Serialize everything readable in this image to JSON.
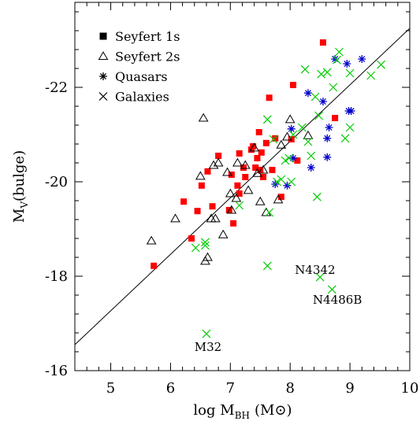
{
  "chart_data": {
    "type": "scatter",
    "title": "",
    "xlabel": {
      "main": "log M",
      "sub": "BH",
      "unit": "(M⊙)"
    },
    "ylabel": {
      "main": "M",
      "sub": "V",
      "rest": "(bulge)"
    },
    "xlim": [
      4.4,
      10.0
    ],
    "ylim": [
      -16.0,
      -23.8
    ],
    "y_inverted": true,
    "grid": false,
    "legend_position": "top-left",
    "x_ticks": [
      "5",
      "6",
      "7",
      "8",
      "9",
      "10"
    ],
    "y_ticks": [
      "-22",
      "-20",
      "-18",
      "-16"
    ],
    "fit_line": {
      "x": [
        4.4,
        10.0
      ],
      "y": [
        -16.55,
        -23.25
      ]
    },
    "series": [
      {
        "name": "Seyfert 1s",
        "marker": "filled-square",
        "color": "#ff0000",
        "x": [
          5.72,
          6.22,
          6.35,
          6.45,
          6.52,
          6.62,
          6.7,
          6.8,
          6.98,
          7.02,
          7.05,
          7.12,
          7.15,
          7.15,
          7.22,
          7.25,
          7.35,
          7.38,
          7.42,
          7.45,
          7.48,
          7.5,
          7.52,
          7.55,
          7.6,
          7.65,
          7.7,
          7.75,
          7.85,
          8.02,
          8.05,
          8.12,
          8.55,
          8.75
        ],
        "y": [
          -18.22,
          -19.58,
          -18.8,
          -19.38,
          -19.92,
          -20.22,
          -19.48,
          -20.55,
          -19.4,
          -20.15,
          -19.12,
          -19.92,
          -20.6,
          -19.75,
          -20.3,
          -20.1,
          -20.68,
          -20.75,
          -20.3,
          -20.5,
          -21.05,
          -20.25,
          -20.62,
          -20.1,
          -20.82,
          -21.78,
          -20.25,
          -20.92,
          -19.68,
          -20.9,
          -22.05,
          -20.45,
          -22.95,
          -21.35
        ]
      },
      {
        "name": "Seyfert 2s",
        "marker": "open-triangle",
        "color": "#000000",
        "x": [
          5.68,
          6.08,
          6.5,
          6.55,
          6.58,
          6.62,
          6.68,
          6.72,
          6.75,
          6.8,
          6.88,
          6.95,
          7.0,
          7.02,
          7.1,
          7.12,
          7.25,
          7.3,
          7.4,
          7.45,
          7.5,
          7.55,
          7.6,
          7.8,
          7.85,
          7.95,
          8.0,
          8.3
        ],
        "y": [
          -18.75,
          -19.22,
          -20.12,
          -21.35,
          -18.32,
          -18.4,
          -19.22,
          -20.35,
          -19.22,
          -20.4,
          -18.88,
          -20.2,
          -19.75,
          -19.4,
          -19.65,
          -20.4,
          -20.35,
          -19.82,
          -20.72,
          -20.18,
          -19.58,
          -20.25,
          -19.35,
          -19.62,
          -20.78,
          -20.95,
          -21.32,
          -20.98
        ]
      },
      {
        "name": "Quasars",
        "marker": "asterisk",
        "color": "#0000cc",
        "x": [
          7.75,
          7.95,
          8.02,
          8.05,
          8.3,
          8.35,
          8.55,
          8.62,
          8.62,
          8.65,
          8.75,
          8.95,
          8.98,
          9.02,
          9.2
        ],
        "y": [
          -19.95,
          -19.92,
          -21.12,
          -20.5,
          -21.88,
          -20.3,
          -21.7,
          -20.52,
          -20.92,
          -21.15,
          -22.6,
          -22.5,
          -21.5,
          -21.5,
          -22.6
        ]
      },
      {
        "name": "Galaxies",
        "marker": "cross",
        "color": "#00cc00",
        "x": [
          6.42,
          6.58,
          6.58,
          7.15,
          7.65,
          7.62,
          7.72,
          7.78,
          7.85,
          7.92,
          7.98,
          8.02,
          8.05,
          8.2,
          8.25,
          8.3,
          8.35,
          8.42,
          8.45,
          8.48,
          8.52,
          8.62,
          8.72,
          8.78,
          8.82,
          8.92,
          9.0,
          9.0,
          9.35,
          9.52,
          8.7,
          8.5,
          7.62,
          6.6
        ],
        "y": [
          -18.6,
          -18.65,
          -18.72,
          -19.5,
          -19.35,
          -21.32,
          -20.9,
          -20.0,
          -20.05,
          -20.45,
          -20.5,
          -20.0,
          -21.0,
          -21.15,
          -22.38,
          -20.85,
          -20.55,
          -21.8,
          -19.68,
          -21.4,
          -22.28,
          -22.32,
          -22.0,
          -22.58,
          -22.75,
          -20.92,
          -21.15,
          -22.3,
          -22.25,
          -22.48,
          -17.72,
          -17.98,
          -18.22,
          -16.78
        ]
      }
    ],
    "annotations": [
      {
        "text": "N4342",
        "x": 8.08,
        "y": -18.05
      },
      {
        "text": "N4486B",
        "x": 8.38,
        "y": -17.42
      },
      {
        "text": "M32",
        "x": 6.4,
        "y": -16.42
      }
    ]
  }
}
